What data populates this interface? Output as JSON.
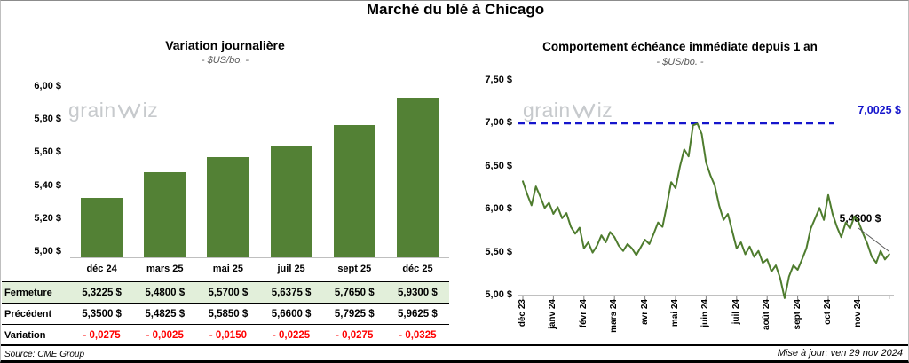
{
  "page": {
    "title": "Marché du blé à Chicago",
    "source": "Source: CME Group",
    "updated": "Mise à jour: ven 29 nov 2024",
    "watermark": {
      "full": "grainwiz",
      "prefix": "grain",
      "suffix": "iz"
    }
  },
  "colors": {
    "bar_green": "#538135",
    "line_green": "#4e7c2e",
    "reference_blue": "#1515cc",
    "variation_red": "#ff0000",
    "fermeture_row_bg": "#e2efda",
    "watermark_gray": "#c7cacd",
    "subtitle_gray": "#595959"
  },
  "chart_data": [
    {
      "type": "bar",
      "title": "Variation journalière",
      "subtitle": "- $US/bo. -",
      "categories": [
        "déc 24",
        "mars 25",
        "mai 25",
        "juil 25",
        "sept 25",
        "déc 25"
      ],
      "values": [
        5.3225,
        5.48,
        5.57,
        5.6375,
        5.765,
        5.93
      ],
      "ylim": [
        5.0,
        6.0
      ],
      "yticks": [
        {
          "v": 6.0,
          "label": "6,00 $"
        },
        {
          "v": 5.8,
          "label": "5,80 $"
        },
        {
          "v": 5.6,
          "label": "5,60 $"
        },
        {
          "v": 5.4,
          "label": "5,40 $"
        },
        {
          "v": 5.2,
          "label": "5,20 $"
        },
        {
          "v": 5.0,
          "label": "5,00 $"
        }
      ],
      "grid": false,
      "legend": false
    },
    {
      "type": "line",
      "title": "Comportement échéance immédiate depuis 1 an",
      "subtitle": "- $US/bo. -",
      "x_labels": [
        "déc 23",
        "janv 24",
        "févr 24",
        "mars 24",
        "avr 24",
        "mai 24",
        "juin 24",
        "juil 24",
        "août 24",
        "sept 24",
        "oct 24",
        "nov 24"
      ],
      "ylim": [
        5.0,
        7.5
      ],
      "yticks": [
        {
          "v": 7.5,
          "label": "7,50 $"
        },
        {
          "v": 7.0,
          "label": "7,00 $"
        },
        {
          "v": 6.5,
          "label": "6,50 $"
        },
        {
          "v": 6.0,
          "label": "6,00 $"
        },
        {
          "v": 5.5,
          "label": "5,50 $"
        },
        {
          "v": 5.0,
          "label": "5,00 $"
        }
      ],
      "reference_line": {
        "value": 7.0025,
        "label": "7,0025 $"
      },
      "last_point": {
        "value": 5.48,
        "label": "5,4800 $"
      },
      "grid": false,
      "legend": false,
      "series": [
        {
          "name": "échéance immédiate",
          "x_range_months": [
            0,
            12
          ],
          "values": [
            6.33,
            6.18,
            6.05,
            6.27,
            6.15,
            6.02,
            6.08,
            5.95,
            6.03,
            5.9,
            5.96,
            5.8,
            5.72,
            5.79,
            5.55,
            5.62,
            5.5,
            5.58,
            5.7,
            5.62,
            5.74,
            5.68,
            5.58,
            5.52,
            5.6,
            5.55,
            5.47,
            5.56,
            5.65,
            5.6,
            5.72,
            5.85,
            5.8,
            6.05,
            6.32,
            6.25,
            6.5,
            6.7,
            6.62,
            6.98,
            7.0,
            6.88,
            6.55,
            6.4,
            6.28,
            6.05,
            5.88,
            5.95,
            5.75,
            5.55,
            5.62,
            5.48,
            5.57,
            5.45,
            5.52,
            5.38,
            5.42,
            5.28,
            5.35,
            5.2,
            4.97,
            5.22,
            5.35,
            5.3,
            5.42,
            5.55,
            5.78,
            5.9,
            6.02,
            5.88,
            6.17,
            5.95,
            5.8,
            5.68,
            5.85,
            5.78,
            5.92,
            5.85,
            5.72,
            5.6,
            5.45,
            5.38,
            5.52,
            5.42,
            5.48
          ]
        }
      ]
    }
  ],
  "table": {
    "rows": [
      {
        "label": "Fermeture",
        "values": [
          "5,3225 $",
          "5,4800 $",
          "5,5700 $",
          "5,6375 $",
          "5,7650 $",
          "5,9300 $"
        ]
      },
      {
        "label": "Précédent",
        "values": [
          "5,3500 $",
          "5,4825 $",
          "5,5850 $",
          "5,6600 $",
          "5,7925 $",
          "5,9625 $"
        ]
      },
      {
        "label": "Variation",
        "values": [
          "- 0,0275",
          "- 0,0025",
          "- 0,0150",
          "- 0,0225",
          "- 0,0275",
          "- 0,0325"
        ]
      }
    ]
  }
}
